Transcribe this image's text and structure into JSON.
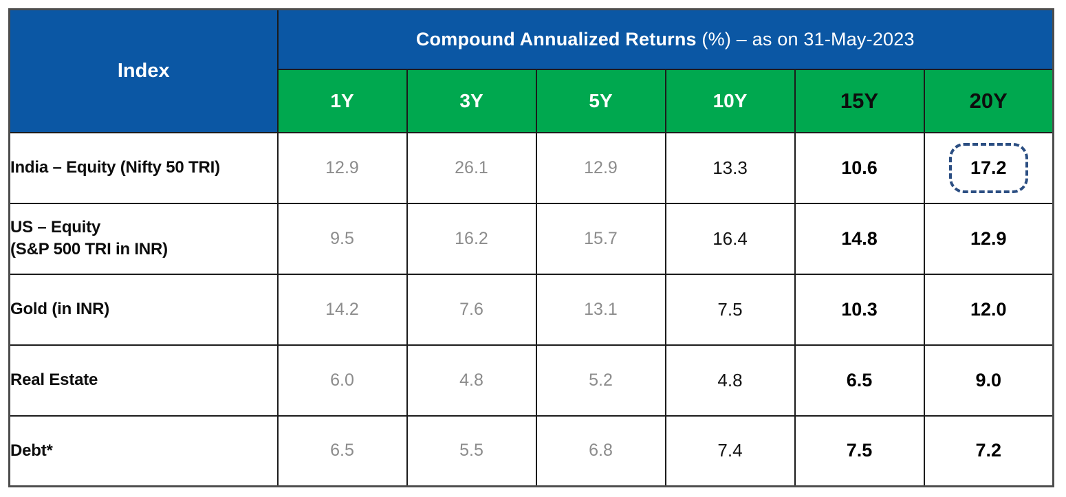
{
  "table": {
    "index_header": "Index",
    "title_bold": "Compound Annualized Returns",
    "title_rest": " (%) – as on 31-May-2023",
    "periods": [
      "1Y",
      "3Y",
      "5Y",
      "10Y",
      "15Y",
      "20Y"
    ],
    "rows": [
      {
        "label_lines": [
          "India – Equity (Nifty 50 TRI)"
        ],
        "values": [
          "12.9",
          "26.1",
          "12.9",
          "13.3",
          "10.6",
          "17.2"
        ],
        "highlight_col": 5
      },
      {
        "label_lines": [
          "US – Equity",
          "(S&P 500 TRI in INR)"
        ],
        "values": [
          "9.5",
          "16.2",
          "15.7",
          "16.4",
          "14.8",
          "12.9"
        ],
        "highlight_col": -1
      },
      {
        "label_lines": [
          "Gold (in INR)"
        ],
        "values": [
          "14.2",
          "7.6",
          "13.1",
          "7.5",
          "10.3",
          "12.0"
        ],
        "highlight_col": -1
      },
      {
        "label_lines": [
          "Real Estate"
        ],
        "values": [
          "6.0",
          "4.8",
          "5.2",
          "4.8",
          "6.5",
          "9.0"
        ],
        "highlight_col": -1
      },
      {
        "label_lines": [
          "Debt*"
        ],
        "values": [
          "6.5",
          "5.5",
          "6.8",
          "7.4",
          "7.5",
          "7.2"
        ],
        "highlight_col": -1
      }
    ],
    "colors": {
      "header_blue": "#0B57A4",
      "header_green": "#00A84F",
      "muted_value_gray": "#8C8C8C",
      "highlight_border_blue": "#2B4E82"
    }
  },
  "chart_data": {
    "type": "table",
    "title": "Compound Annualized Returns (%) – as on 31-May-2023",
    "categories": [
      "1Y",
      "3Y",
      "5Y",
      "10Y",
      "15Y",
      "20Y"
    ],
    "series": [
      {
        "name": "India – Equity (Nifty 50 TRI)",
        "values": [
          12.9,
          26.1,
          12.9,
          13.3,
          10.6,
          17.2
        ]
      },
      {
        "name": "US – Equity (S&P 500 TRI in INR)",
        "values": [
          9.5,
          16.2,
          15.7,
          16.4,
          14.8,
          12.9
        ]
      },
      {
        "name": "Gold (in INR)",
        "values": [
          14.2,
          7.6,
          13.1,
          7.5,
          10.3,
          12.0
        ]
      },
      {
        "name": "Real Estate",
        "values": [
          6.0,
          4.8,
          5.2,
          4.8,
          6.5,
          9.0
        ]
      },
      {
        "name": "Debt*",
        "values": [
          6.5,
          5.5,
          6.8,
          7.4,
          7.5,
          7.2
        ]
      }
    ],
    "annotations": [
      "India Equity 20Y value 17.2 is highlighted with a dashed blue rounded box"
    ]
  }
}
